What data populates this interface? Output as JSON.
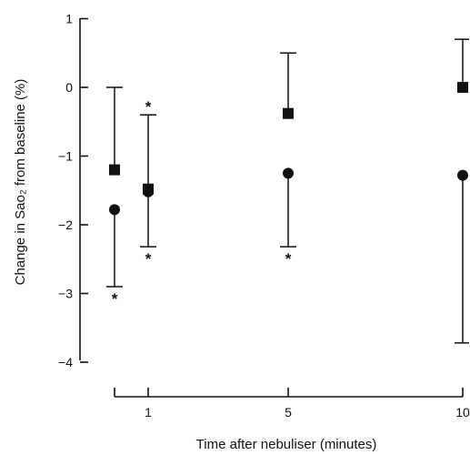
{
  "chart_data": {
    "type": "scatter",
    "xlabel": "Time after nebuliser (minutes)",
    "ylabel": "Change in Sao₂ from baseline (%)",
    "x_tick_labels": [
      "",
      "1",
      "5",
      "10"
    ],
    "y_tick_labels": [
      "1",
      "0",
      "−1",
      "−2",
      "−3",
      "−4"
    ],
    "y_ticks": [
      1,
      0,
      -1,
      -2,
      -3,
      -4
    ],
    "ylim": [
      -4.3,
      1.05
    ],
    "x_positions": [
      0.5,
      1,
      5,
      10
    ],
    "grid": false,
    "series": [
      {
        "marker": "square",
        "points": [
          {
            "x": 0.5,
            "y": -1.2,
            "err_low": null,
            "err_high": 0.0,
            "sig_high": false,
            "sig_low": false
          },
          {
            "x": 1,
            "y": -1.48,
            "err_low": null,
            "err_high": -0.4,
            "sig_high": true,
            "sig_low": false
          },
          {
            "x": 5,
            "y": -0.38,
            "err_low": null,
            "err_high": 0.5,
            "sig_high": false,
            "sig_low": false
          },
          {
            "x": 10,
            "y": 0.0,
            "err_low": null,
            "err_high": 0.7,
            "sig_high": false,
            "sig_low": false
          }
        ]
      },
      {
        "marker": "circle",
        "points": [
          {
            "x": 0.5,
            "y": -1.78,
            "err_low": -2.9,
            "err_high": null,
            "sig_high": false,
            "sig_low": true
          },
          {
            "x": 1,
            "y": -1.52,
            "err_low": -2.32,
            "err_high": null,
            "sig_high": false,
            "sig_low": true
          },
          {
            "x": 5,
            "y": -1.25,
            "err_low": -2.32,
            "err_high": null,
            "sig_high": false,
            "sig_low": true
          },
          {
            "x": 10,
            "y": -1.28,
            "err_low": -3.72,
            "err_high": null,
            "sig_high": false,
            "sig_low": false
          }
        ]
      }
    ],
    "significance_marker": "*"
  }
}
